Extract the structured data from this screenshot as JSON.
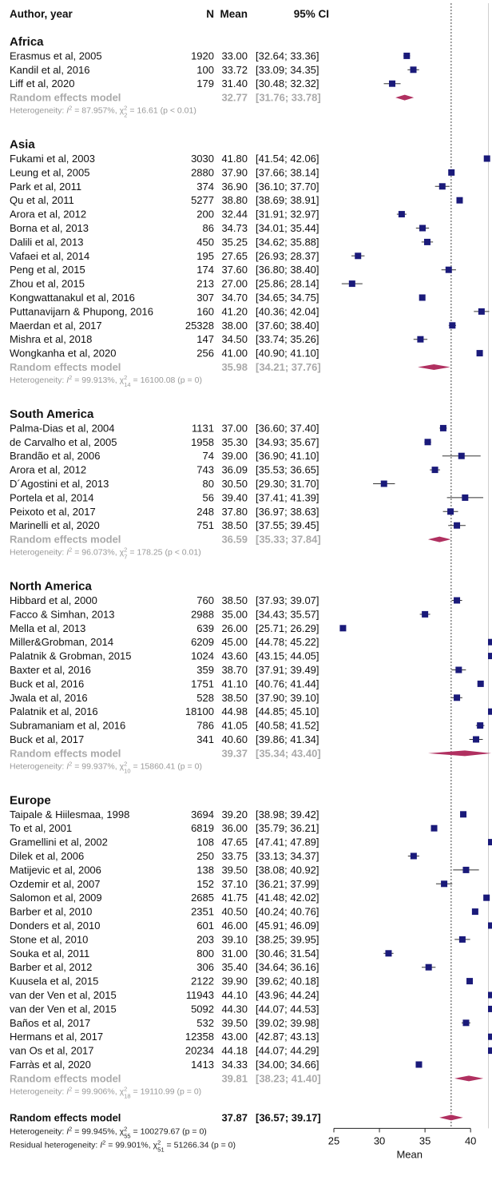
{
  "chart_data": {
    "type": "forest",
    "headers": {
      "study": "Author, year",
      "n": "N",
      "mean": "Mean",
      "ci": "95% CI"
    },
    "xaxis": {
      "label": "Mean",
      "ticks": [
        25,
        30,
        35,
        40
      ],
      "range": [
        25,
        42
      ]
    },
    "reference_line": 37.87,
    "colors": {
      "study_marker": "#1a1a7a",
      "pooled_diamond": "#b03060",
      "subtotal_text": "#aaaaaa"
    },
    "groups": [
      {
        "name": "Africa",
        "studies": [
          {
            "label": "Erasmus et al, 2005",
            "n": "1920",
            "mean": 33.0,
            "mean_text": "33.00",
            "lo": 32.64,
            "hi": 33.36,
            "ci_text": "[32.64; 33.36]"
          },
          {
            "label": "Kandil et al, 2016",
            "n": "100",
            "mean": 33.72,
            "mean_text": "33.72",
            "lo": 33.09,
            "hi": 34.35,
            "ci_text": "[33.09; 34.35]"
          },
          {
            "label": "Liff et al, 2020",
            "n": "179",
            "mean": 31.4,
            "mean_text": "31.40",
            "lo": 30.48,
            "hi": 32.32,
            "ci_text": "[30.48; 32.32]"
          }
        ],
        "summary": {
          "label": "Random effects model",
          "mean": 32.77,
          "mean_text": "32.77",
          "lo": 31.76,
          "hi": 33.78,
          "ci_text": "[31.76; 33.78]"
        },
        "het": {
          "prefix": "Heterogeneity: ",
          "i2": "87.957%",
          "df": "2",
          "chi": "16.61",
          "p": "(p < 0.01)"
        }
      },
      {
        "name": "Asia",
        "studies": [
          {
            "label": "Fukami et al, 2003",
            "n": "3030",
            "mean": 41.8,
            "mean_text": "41.80",
            "lo": 41.54,
            "hi": 42.06,
            "ci_text": "[41.54; 42.06]"
          },
          {
            "label": "Leung et al, 2005",
            "n": "2880",
            "mean": 37.9,
            "mean_text": "37.90",
            "lo": 37.66,
            "hi": 38.14,
            "ci_text": "[37.66; 38.14]"
          },
          {
            "label": "Park et al, 2011",
            "n": "374",
            "mean": 36.9,
            "mean_text": "36.90",
            "lo": 36.1,
            "hi": 37.7,
            "ci_text": "[36.10; 37.70]"
          },
          {
            "label": "Qu et al, 2011",
            "n": "5277",
            "mean": 38.8,
            "mean_text": "38.80",
            "lo": 38.69,
            "hi": 38.91,
            "ci_text": "[38.69; 38.91]"
          },
          {
            "label": "Arora et al, 2012",
            "n": "200",
            "mean": 32.44,
            "mean_text": "32.44",
            "lo": 31.91,
            "hi": 32.97,
            "ci_text": "[31.91; 32.97]"
          },
          {
            "label": "Borna et al, 2013",
            "n": "86",
            "mean": 34.73,
            "mean_text": "34.73",
            "lo": 34.01,
            "hi": 35.44,
            "ci_text": "[34.01; 35.44]"
          },
          {
            "label": "Dalili et al, 2013",
            "n": "450",
            "mean": 35.25,
            "mean_text": "35.25",
            "lo": 34.62,
            "hi": 35.88,
            "ci_text": "[34.62; 35.88]"
          },
          {
            "label": "Vafaei et al, 2014",
            "n": "195",
            "mean": 27.65,
            "mean_text": "27.65",
            "lo": 26.93,
            "hi": 28.37,
            "ci_text": "[26.93; 28.37]"
          },
          {
            "label": "Peng et al, 2015",
            "n": "174",
            "mean": 37.6,
            "mean_text": "37.60",
            "lo": 36.8,
            "hi": 38.4,
            "ci_text": "[36.80; 38.40]"
          },
          {
            "label": "Zhou  et al, 2015",
            "n": "213",
            "mean": 27.0,
            "mean_text": "27.00",
            "lo": 25.86,
            "hi": 28.14,
            "ci_text": "[25.86; 28.14]"
          },
          {
            "label": "Kongwattanakul et al, 2016",
            "n": "307",
            "mean": 34.7,
            "mean_text": "34.70",
            "lo": 34.65,
            "hi": 34.75,
            "ci_text": "[34.65; 34.75]"
          },
          {
            "label": "Puttanavijarn & Phupong, 2016",
            "n": "160",
            "mean": 41.2,
            "mean_text": "41.20",
            "lo": 40.36,
            "hi": 42.04,
            "ci_text": "[40.36; 42.04]"
          },
          {
            "label": "Maerdan et al, 2017",
            "n": "25328",
            "mean": 38.0,
            "mean_text": "38.00",
            "lo": 37.6,
            "hi": 38.4,
            "ci_text": "[37.60; 38.40]"
          },
          {
            "label": "Mishra et al, 2018",
            "n": "147",
            "mean": 34.5,
            "mean_text": "34.50",
            "lo": 33.74,
            "hi": 35.26,
            "ci_text": "[33.74; 35.26]"
          },
          {
            "label": "Wongkanha et al, 2020",
            "n": "256",
            "mean": 41.0,
            "mean_text": "41.00",
            "lo": 40.9,
            "hi": 41.1,
            "ci_text": "[40.90; 41.10]"
          }
        ],
        "summary": {
          "label": "Random effects model",
          "mean": 35.98,
          "mean_text": "35.98",
          "lo": 34.21,
          "hi": 37.76,
          "ci_text": "[34.21; 37.76]"
        },
        "het": {
          "prefix": "Heterogeneity: ",
          "i2": "99.913%",
          "df": "14",
          "chi": "16100.08",
          "p": "(p = 0)"
        }
      },
      {
        "name": "South America",
        "studies": [
          {
            "label": "Palma-Dias et al, 2004",
            "n": "1131",
            "mean": 37.0,
            "mean_text": "37.00",
            "lo": 36.6,
            "hi": 37.4,
            "ci_text": "[36.60; 37.40]"
          },
          {
            "label": "de Carvalho et al, 2005",
            "n": "1958",
            "mean": 35.3,
            "mean_text": "35.30",
            "lo": 34.93,
            "hi": 35.67,
            "ci_text": "[34.93; 35.67]"
          },
          {
            "label": "Brandão et al, 2006",
            "n": "74",
            "mean": 39.0,
            "mean_text": "39.00",
            "lo": 36.9,
            "hi": 41.1,
            "ci_text": "[36.90; 41.10]"
          },
          {
            "label": "Arora et al, 2012",
            "n": "743",
            "mean": 36.09,
            "mean_text": "36.09",
            "lo": 35.53,
            "hi": 36.65,
            "ci_text": "[35.53; 36.65]"
          },
          {
            "label": "D´Agostini et al, 2013",
            "n": "80",
            "mean": 30.5,
            "mean_text": "30.50",
            "lo": 29.3,
            "hi": 31.7,
            "ci_text": "[29.30; 31.70]"
          },
          {
            "label": "Portela et al, 2014",
            "n": "56",
            "mean": 39.4,
            "mean_text": "39.40",
            "lo": 37.41,
            "hi": 41.39,
            "ci_text": "[37.41; 41.39]"
          },
          {
            "label": "Peixoto et al, 2017",
            "n": "248",
            "mean": 37.8,
            "mean_text": "37.80",
            "lo": 36.97,
            "hi": 38.63,
            "ci_text": "[36.97; 38.63]"
          },
          {
            "label": "Marinelli et al, 2020",
            "n": "751",
            "mean": 38.5,
            "mean_text": "38.50",
            "lo": 37.55,
            "hi": 39.45,
            "ci_text": "[37.55; 39.45]"
          }
        ],
        "summary": {
          "label": "Random effects model",
          "mean": 36.59,
          "mean_text": "36.59",
          "lo": 35.33,
          "hi": 37.84,
          "ci_text": "[35.33; 37.84]"
        },
        "het": {
          "prefix": "Heterogeneity: ",
          "i2": "96.073%",
          "df": "7",
          "chi": "178.25",
          "p": "(p < 0.01)"
        }
      },
      {
        "name": "North America",
        "studies": [
          {
            "label": "Hibbard et al, 2000",
            "n": "760",
            "mean": 38.5,
            "mean_text": "38.50",
            "lo": 37.93,
            "hi": 39.07,
            "ci_text": "[37.93; 39.07]"
          },
          {
            "label": "Facco & Simhan, 2013",
            "n": "2988",
            "mean": 35.0,
            "mean_text": "35.00",
            "lo": 34.43,
            "hi": 35.57,
            "ci_text": "[34.43; 35.57]"
          },
          {
            "label": "Mella et al, 2013",
            "n": "639",
            "mean": 26.0,
            "mean_text": "26.00",
            "lo": 25.71,
            "hi": 26.29,
            "ci_text": "[25.71; 26.29]"
          },
          {
            "label": "Miller&Grobman, 2014",
            "n": "6209",
            "mean": 45.0,
            "mean_text": "45.00",
            "lo": 44.78,
            "hi": 45.22,
            "ci_text": "[44.78; 45.22]"
          },
          {
            "label": "Palatnik & Grobman, 2015",
            "n": "1024",
            "mean": 43.6,
            "mean_text": "43.60",
            "lo": 43.15,
            "hi": 44.05,
            "ci_text": "[43.15; 44.05]"
          },
          {
            "label": "Baxter et al, 2016",
            "n": "359",
            "mean": 38.7,
            "mean_text": "38.70",
            "lo": 37.91,
            "hi": 39.49,
            "ci_text": "[37.91; 39.49]"
          },
          {
            "label": "Buck et al, 2016",
            "n": "1751",
            "mean": 41.1,
            "mean_text": "41.10",
            "lo": 40.76,
            "hi": 41.44,
            "ci_text": "[40.76; 41.44]"
          },
          {
            "label": "Jwala et al, 2016",
            "n": "528",
            "mean": 38.5,
            "mean_text": "38.50",
            "lo": 37.9,
            "hi": 39.1,
            "ci_text": "[37.90; 39.10]"
          },
          {
            "label": "Palatnik et al, 2016",
            "n": "18100",
            "mean": 44.98,
            "mean_text": "44.98",
            "lo": 44.85,
            "hi": 45.1,
            "ci_text": "[44.85; 45.10]"
          },
          {
            "label": "Subramaniam et al, 2016",
            "n": "786",
            "mean": 41.05,
            "mean_text": "41.05",
            "lo": 40.58,
            "hi": 41.52,
            "ci_text": "[40.58; 41.52]"
          },
          {
            "label": "Buck et al, 2017",
            "n": "341",
            "mean": 40.6,
            "mean_text": "40.60",
            "lo": 39.86,
            "hi": 41.34,
            "ci_text": "[39.86; 41.34]"
          }
        ],
        "summary": {
          "label": "Random effects model",
          "mean": 39.37,
          "mean_text": "39.37",
          "lo": 35.34,
          "hi": 43.4,
          "ci_text": "[35.34; 43.40]"
        },
        "het": {
          "prefix": "Heterogeneity: ",
          "i2": "99.937%",
          "df": "10",
          "chi": "15860.41",
          "p": "(p = 0)"
        }
      },
      {
        "name": "Europe",
        "studies": [
          {
            "label": "Taipale & Hiilesmaa, 1998",
            "n": "3694",
            "mean": 39.2,
            "mean_text": "39.20",
            "lo": 38.98,
            "hi": 39.42,
            "ci_text": "[38.98; 39.42]"
          },
          {
            "label": "To et al, 2001",
            "n": "6819",
            "mean": 36.0,
            "mean_text": "36.00",
            "lo": 35.79,
            "hi": 36.21,
            "ci_text": "[35.79; 36.21]"
          },
          {
            "label": "Gramellini et al, 2002",
            "n": "108",
            "mean": 47.65,
            "mean_text": "47.65",
            "lo": 47.41,
            "hi": 47.89,
            "ci_text": "[47.41; 47.89]"
          },
          {
            "label": "Dilek et al, 2006",
            "n": "250",
            "mean": 33.75,
            "mean_text": "33.75",
            "lo": 33.13,
            "hi": 34.37,
            "ci_text": "[33.13; 34.37]"
          },
          {
            "label": "Matijevic et al, 2006",
            "n": "138",
            "mean": 39.5,
            "mean_text": "39.50",
            "lo": 38.08,
            "hi": 40.92,
            "ci_text": "[38.08; 40.92]"
          },
          {
            "label": "Ozdemir et al, 2007",
            "n": "152",
            "mean": 37.1,
            "mean_text": "37.10",
            "lo": 36.21,
            "hi": 37.99,
            "ci_text": "[36.21; 37.99]"
          },
          {
            "label": "Salomon et al, 2009",
            "n": "2685",
            "mean": 41.75,
            "mean_text": "41.75",
            "lo": 41.48,
            "hi": 42.02,
            "ci_text": "[41.48; 42.02]"
          },
          {
            "label": "Barber et al, 2010",
            "n": "2351",
            "mean": 40.5,
            "mean_text": "40.50",
            "lo": 40.24,
            "hi": 40.76,
            "ci_text": "[40.24; 40.76]"
          },
          {
            "label": "Donders et al, 2010",
            "n": "601",
            "mean": 46.0,
            "mean_text": "46.00",
            "lo": 45.91,
            "hi": 46.09,
            "ci_text": "[45.91; 46.09]"
          },
          {
            "label": "Stone et al, 2010",
            "n": "203",
            "mean": 39.1,
            "mean_text": "39.10",
            "lo": 38.25,
            "hi": 39.95,
            "ci_text": "[38.25; 39.95]"
          },
          {
            "label": "Souka et al, 2011",
            "n": "800",
            "mean": 31.0,
            "mean_text": "31.00",
            "lo": 30.46,
            "hi": 31.54,
            "ci_text": "[30.46; 31.54]"
          },
          {
            "label": "Barber et al, 2012",
            "n": "306",
            "mean": 35.4,
            "mean_text": "35.40",
            "lo": 34.64,
            "hi": 36.16,
            "ci_text": "[34.64; 36.16]"
          },
          {
            "label": "Kuusela et al, 2015",
            "n": "2122",
            "mean": 39.9,
            "mean_text": "39.90",
            "lo": 39.62,
            "hi": 40.18,
            "ci_text": "[39.62; 40.18]"
          },
          {
            "label": "van der Ven et al, 2015",
            "n": "11943",
            "mean": 44.1,
            "mean_text": "44.10",
            "lo": 43.96,
            "hi": 44.24,
            "ci_text": "[43.96; 44.24]"
          },
          {
            "label": "van der Ven et al, 2015",
            "n": "5092",
            "mean": 44.3,
            "mean_text": "44.30",
            "lo": 44.07,
            "hi": 44.53,
            "ci_text": "[44.07; 44.53]"
          },
          {
            "label": "Baños et al, 2017",
            "n": "532",
            "mean": 39.5,
            "mean_text": "39.50",
            "lo": 39.02,
            "hi": 39.98,
            "ci_text": "[39.02; 39.98]"
          },
          {
            "label": "Hermans et al, 2017",
            "n": "12358",
            "mean": 43.0,
            "mean_text": "43.00",
            "lo": 42.87,
            "hi": 43.13,
            "ci_text": "[42.87; 43.13]"
          },
          {
            "label": "van Os et al, 2017",
            "n": "20234",
            "mean": 44.18,
            "mean_text": "44.18",
            "lo": 44.07,
            "hi": 44.29,
            "ci_text": "[44.07; 44.29]"
          },
          {
            "label": "Farràs et al, 2020",
            "n": "1413",
            "mean": 34.33,
            "mean_text": "34.33",
            "lo": 34.0,
            "hi": 34.66,
            "ci_text": "[34.00; 34.66]"
          }
        ],
        "summary": {
          "label": "Random effects model",
          "mean": 39.81,
          "mean_text": "39.81",
          "lo": 38.23,
          "hi": 41.4,
          "ci_text": "[38.23; 41.40]"
        },
        "het": {
          "prefix": "Heterogeneity: ",
          "i2": "99.906%",
          "df": "18",
          "chi": "19110.99",
          "p": "(p = 0)"
        }
      }
    ],
    "overall": {
      "label": "Random effects model",
      "mean": 37.87,
      "mean_text": "37.87",
      "lo": 36.57,
      "hi": 39.17,
      "ci_text": "[36.57; 39.17]",
      "het": {
        "prefix": "Heterogeneity: ",
        "i2": "99.945%",
        "df": "55",
        "chi": "100279.67",
        "p": "(p = 0)"
      },
      "residual_het": {
        "prefix": "Residual heterogeneity: ",
        "i2": "99.901%",
        "df": "51",
        "chi": "51266.34",
        "p": "(p = 0)"
      }
    }
  }
}
